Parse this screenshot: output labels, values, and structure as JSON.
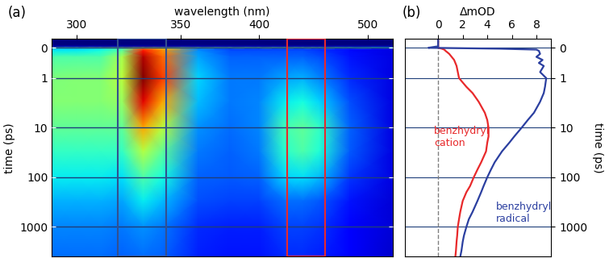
{
  "chart_data": [
    {
      "type": "heatmap",
      "title": "(a)",
      "x_label": "wavelength (nm)",
      "y_label": "time (ps)",
      "x": [
        290,
        300,
        310,
        320,
        330,
        340,
        360,
        380,
        400,
        420,
        435,
        450,
        480,
        530
      ],
      "y": [
        -0.3,
        -0.1,
        -0.02,
        0,
        0.05,
        0.1,
        0.3,
        1,
        3,
        10,
        30,
        100,
        300,
        1000,
        4000
      ],
      "cells": [
        [
          0,
          0,
          0,
          0,
          0,
          0,
          0,
          0,
          0,
          0,
          0,
          0,
          0,
          0
        ],
        [
          0,
          0,
          0,
          0,
          0,
          0,
          0,
          0,
          0,
          0,
          0,
          0,
          0,
          0
        ],
        [
          0.5,
          0.5,
          0.5,
          0.5,
          0.5,
          0.5,
          0.5,
          0.5,
          0.5,
          0.5,
          0.5,
          0.5,
          0.5,
          0.5
        ],
        [
          4,
          4,
          4.5,
          5,
          6,
          5.5,
          4.5,
          4.5,
          4.5,
          4.5,
          4.5,
          4.5,
          4,
          3.5
        ],
        [
          3,
          3,
          3.2,
          4,
          7.5,
          6.5,
          2.2,
          1.6,
          1.6,
          1.6,
          1.6,
          1.5,
          1.2,
          0.8
        ],
        [
          3.2,
          3.2,
          3.4,
          4.2,
          8,
          6.8,
          2.4,
          1.8,
          1.8,
          1.8,
          1.8,
          1.6,
          1.2,
          0.8
        ],
        [
          4,
          4,
          4,
          5,
          8.6,
          7.2,
          2.6,
          2,
          2,
          2,
          2,
          1.8,
          1.3,
          0.8
        ],
        [
          4.5,
          4.6,
          4.6,
          5.2,
          9,
          7.6,
          3,
          2.2,
          2.2,
          2.6,
          2.7,
          2.3,
          1.5,
          0.8
        ],
        [
          4.6,
          4.6,
          4.6,
          4.8,
          8.2,
          6.6,
          2.8,
          2.2,
          2.3,
          3.2,
          3.4,
          3,
          1.8,
          0.8
        ],
        [
          4.2,
          4.2,
          4.2,
          4.2,
          6.6,
          5.2,
          2.4,
          2.1,
          2.3,
          3.9,
          4.2,
          3.7,
          2,
          0.8
        ],
        [
          3.7,
          3.7,
          3.7,
          3.7,
          5.1,
          4.2,
          2.2,
          2,
          2.2,
          3.6,
          4,
          3.5,
          1.9,
          0.8
        ],
        [
          3.2,
          3.2,
          3.2,
          3.1,
          4,
          3.4,
          2,
          1.9,
          2,
          3,
          3.1,
          2.8,
          1.6,
          0.8
        ],
        [
          2.7,
          2.7,
          2.7,
          2.6,
          3.2,
          2.8,
          1.8,
          1.7,
          1.7,
          2.1,
          2.1,
          1.9,
          1.3,
          0.7
        ],
        [
          2.3,
          2.3,
          2.3,
          2.2,
          2.4,
          2.2,
          1.5,
          1.4,
          1.4,
          1.7,
          1.7,
          1.6,
          1.1,
          0.7
        ],
        [
          2.1,
          2.1,
          2.1,
          2,
          2.1,
          2,
          1.4,
          1.3,
          1.3,
          1.5,
          1.5,
          1.4,
          1,
          0.6
        ]
      ],
      "windows": [
        {
          "range": [
            318,
            342
          ],
          "color": "#34508f"
        },
        {
          "range": [
            422,
            455
          ],
          "color": "#e8292b"
        }
      ],
      "xlim": [
        290,
        530
      ],
      "xticks": [
        300,
        350,
        400,
        500
      ],
      "ylim": [
        -0.3,
        4000
      ],
      "yticks": [
        0,
        1,
        10,
        100,
        1000
      ],
      "log": "y",
      "grid": true
    },
    {
      "type": "line",
      "title": "(b)",
      "x_label": "ΔmOD",
      "y_label": "time (ps)",
      "orientation": "horizontal",
      "x": [
        -0.3,
        -0.05,
        0,
        0.03,
        0.06,
        0.1,
        0.2,
        0.3,
        0.4,
        0.5,
        0.6,
        0.8,
        1,
        1.5,
        2,
        3,
        5,
        7,
        10,
        15,
        20,
        30,
        50,
        70,
        100,
        150,
        200,
        300,
        500,
        700,
        1000,
        1500,
        2000,
        3000,
        4000
      ],
      "series": [
        {
          "name": "benzhydryl\ncation",
          "color": "#e8292b",
          "values": [
            0,
            0,
            0,
            0.3,
            0.5,
            0.6,
            0.9,
            1.1,
            1.3,
            1.4,
            1.5,
            1.6,
            1.7,
            2.3,
            2.8,
            3.3,
            3.8,
            4.0,
            4.1,
            4.1,
            4.0,
            3.9,
            3.5,
            3.2,
            2.9,
            2.6,
            2.3,
            2.0,
            1.8,
            1.7,
            1.6,
            1.55,
            1.5,
            1.45,
            1.4
          ]
        },
        {
          "name": "benzhydryl\nradical",
          "color": "#2b3fa0",
          "values": [
            0,
            0,
            -0.8,
            5,
            8.0,
            8.2,
            8.3,
            8.0,
            8.5,
            8.2,
            8.6,
            8.3,
            8.8,
            8.7,
            8.6,
            8.3,
            7.8,
            7.3,
            6.8,
            6.2,
            5.8,
            5.2,
            4.6,
            4.3,
            4.0,
            3.7,
            3.5,
            3.2,
            2.8,
            2.5,
            2.3,
            2.1,
            2.0,
            1.9,
            1.8
          ]
        }
      ],
      "vline": 0,
      "xlim": [
        -2.7,
        9.2
      ],
      "xticks": [
        0,
        2,
        4,
        6,
        8
      ],
      "ylim": [
        -0.3,
        4000
      ],
      "yticks": [
        0,
        1,
        10,
        100,
        1000
      ],
      "log": "y",
      "grid": true
    }
  ]
}
